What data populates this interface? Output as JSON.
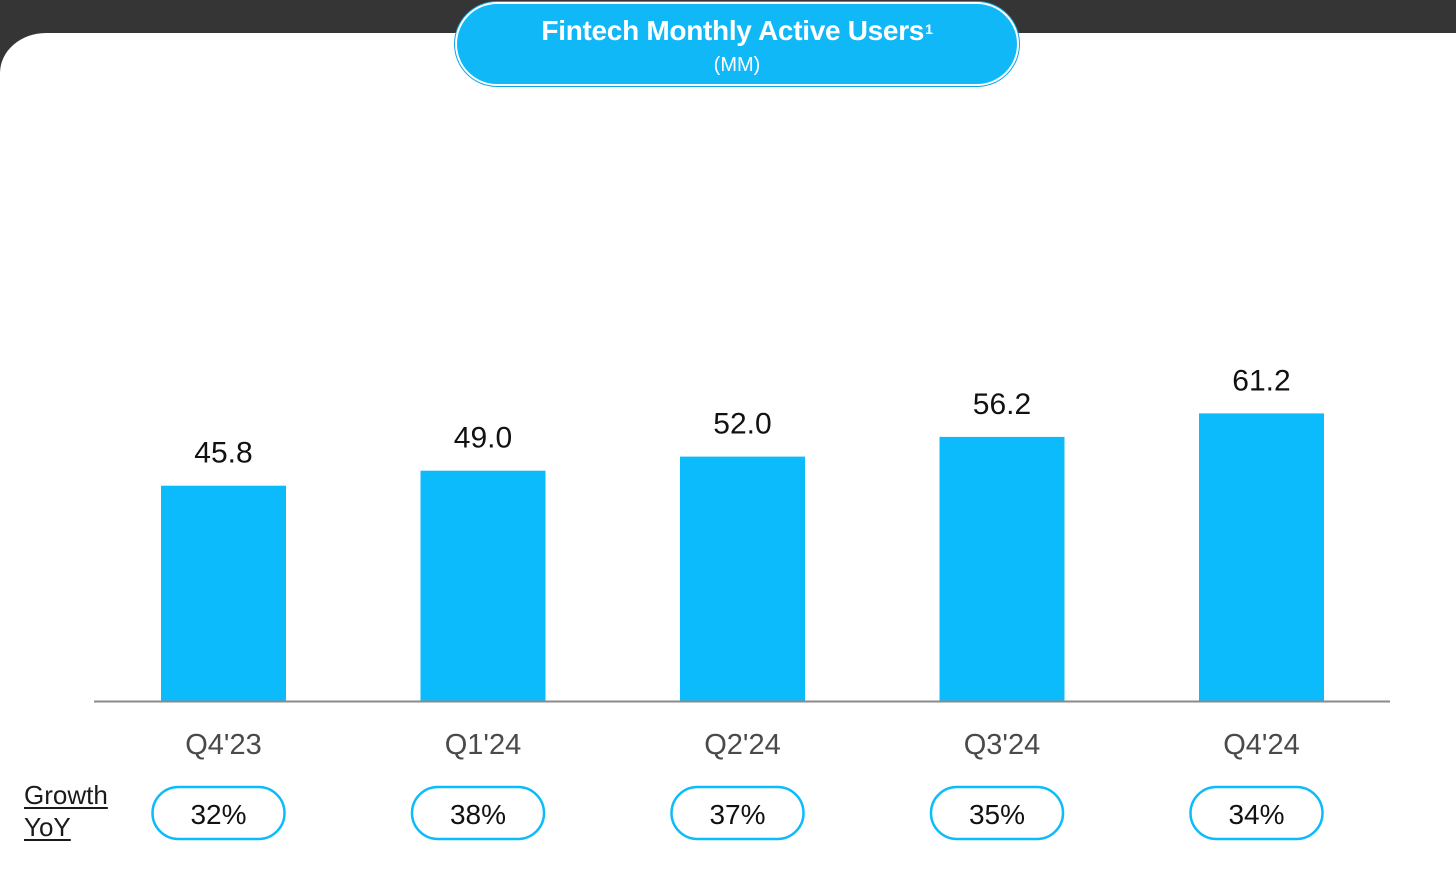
{
  "title": "Fintech Monthly Active Users",
  "title_footnote": "1",
  "subtitle": "(MM)",
  "growth_label": [
    "Growth",
    "YoY"
  ],
  "colors": {
    "bar": "#0cbbfb",
    "pill_border": "#0cbbfb",
    "axis": "#8a8a8a",
    "label_text": "#111111",
    "tick_text": "#4a4a4a",
    "top_band": "#353535"
  },
  "chart_data": {
    "type": "bar",
    "title": "Fintech Monthly Active Users",
    "subtitle": "(MM)",
    "categories": [
      "Q4'23",
      "Q1'24",
      "Q2'24",
      "Q3'24",
      "Q4'24"
    ],
    "values": [
      45.8,
      49.0,
      52.0,
      56.2,
      61.2
    ],
    "value_labels": [
      "45.8",
      "49.0",
      "52.0",
      "56.2",
      "61.2"
    ],
    "growth_yoy": [
      "32%",
      "38%",
      "37%",
      "35%",
      "34%"
    ],
    "xlabel": "",
    "ylabel": "",
    "grid": false,
    "legend": "none"
  }
}
